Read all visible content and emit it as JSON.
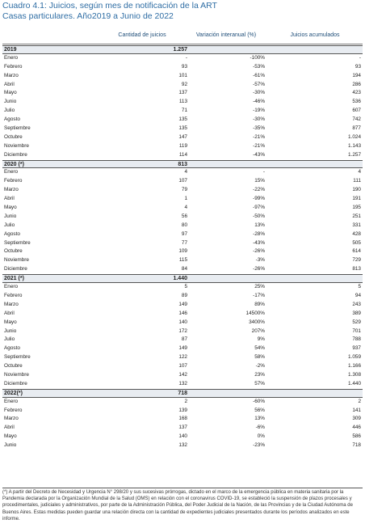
{
  "title": [
    "Cuadro 4.1: Juicios, según mes de notificación de la ART",
    "Casas particulares. Año2019 a Junio de 2022"
  ],
  "columns": [
    "Cantidad de juicios",
    "Variación interanual (%)",
    "Juicios acumulados"
  ],
  "sections": [
    {
      "year": "2019",
      "total": "1.257",
      "rows": [
        [
          "Enero",
          "-",
          "-100%",
          "-"
        ],
        [
          "Febrero",
          "93",
          "-53%",
          "93"
        ],
        [
          "Marzo",
          "101",
          "-61%",
          "194"
        ],
        [
          "Abril",
          "92",
          "-57%",
          "286"
        ],
        [
          "Mayo",
          "137",
          "-30%",
          "423"
        ],
        [
          "Junio",
          "113",
          "-46%",
          "536"
        ],
        [
          "Julio",
          "71",
          "-19%",
          "607"
        ],
        [
          "Agosto",
          "135",
          "-30%",
          "742"
        ],
        [
          "Septiembre",
          "135",
          "-35%",
          "877"
        ],
        [
          "Octubre",
          "147",
          "-21%",
          "1.024"
        ],
        [
          "Noviembre",
          "119",
          "-21%",
          "1.143"
        ],
        [
          "Diciembre",
          "114",
          "-43%",
          "1.257"
        ]
      ]
    },
    {
      "year": "2020 (*)",
      "total": "813",
      "rows": [
        [
          "Enero",
          "4",
          "-",
          "4"
        ],
        [
          "Febrero",
          "107",
          "15%",
          "111"
        ],
        [
          "Marzo",
          "79",
          "-22%",
          "190"
        ],
        [
          "Abril",
          "1",
          "-99%",
          "191"
        ],
        [
          "Mayo",
          "4",
          "-97%",
          "195"
        ],
        [
          "Junio",
          "56",
          "-50%",
          "251"
        ],
        [
          "Julio",
          "80",
          "13%",
          "331"
        ],
        [
          "Agosto",
          "97",
          "-28%",
          "428"
        ],
        [
          "Septiembre",
          "77",
          "-43%",
          "505"
        ],
        [
          "Octubre",
          "109",
          "-26%",
          "614"
        ],
        [
          "Noviembre",
          "115",
          "-3%",
          "729"
        ],
        [
          "Diciembre",
          "84",
          "-26%",
          "813"
        ]
      ]
    },
    {
      "year": "2021 (*)",
      "total": "1.440",
      "rows": [
        [
          "Enero",
          "5",
          "25%",
          "5"
        ],
        [
          "Febrero",
          "89",
          "-17%",
          "94"
        ],
        [
          "Marzo",
          "149",
          "89%",
          "243"
        ],
        [
          "Abril",
          "146",
          "14500%",
          "389"
        ],
        [
          "Mayo",
          "140",
          "3400%",
          "529"
        ],
        [
          "Junio",
          "172",
          "207%",
          "701"
        ],
        [
          "Julio",
          "87",
          "9%",
          "788"
        ],
        [
          "Agosto",
          "149",
          "54%",
          "937"
        ],
        [
          "Septiembre",
          "122",
          "58%",
          "1.059"
        ],
        [
          "Octubre",
          "107",
          "-2%",
          "1.166"
        ],
        [
          "Noviembre",
          "142",
          "23%",
          "1.308"
        ],
        [
          "Diciembre",
          "132",
          "57%",
          "1.440"
        ]
      ]
    },
    {
      "year": "2022(*)",
      "total": "718",
      "rows": [
        [
          "Enero",
          "2",
          "-60%",
          "2"
        ],
        [
          "Febrero",
          "139",
          "56%",
          "141"
        ],
        [
          "Marzo",
          "168",
          "13%",
          "309"
        ],
        [
          "Abril",
          "137",
          "-6%",
          "446"
        ],
        [
          "Mayo",
          "140",
          "0%",
          "586"
        ],
        [
          "Junio",
          "132",
          "-23%",
          "718"
        ]
      ]
    }
  ],
  "footnote": "(*) A partir del Decreto de Necesidad y Urgencia N° 298/20 y sus sucesivas prórrogas, dictado en el marco de la emergencia pública en materia sanitaria por la Pandemia declarada por la Organización Mundial de la Salud (OMS) en relación con el coronavirus COVID-19, se estableció la suspensión de plazos procesales y procedimentales, judiciales y administrativos, por parte de la Administración Pública, del Poder Judicial de la Nación, de las Provincias y de la Ciudad Autónoma de Buenos Aires. Estas medidas pueden guardar una relación directa con la cantidad de expedientes judiciales presentados durante los períodos analizados en este informe."
}
